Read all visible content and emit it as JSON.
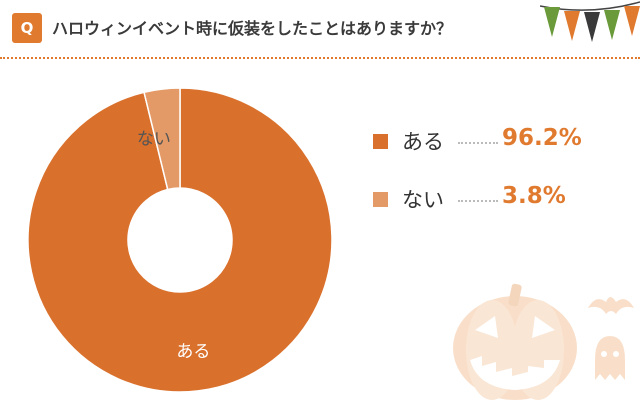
{
  "header": {
    "badge": "Q",
    "question": "ハロウィンイベント時に仮装をしたことはありますか？"
  },
  "colors": {
    "accent": "#e07a2f",
    "slice_main": "#d9702c",
    "slice_minor": "#e49a66",
    "divider": "#e07a2f"
  },
  "legend": [
    {
      "label": "ある",
      "value": "96.2%",
      "color": "#d9702c"
    },
    {
      "label": "ない",
      "value": "3.8%",
      "color": "#e49a66"
    }
  ],
  "chart_data": {
    "type": "pie",
    "donut": true,
    "title": "ハロウィンイベント時に仮装をしたことはありますか？",
    "categories": [
      "ある",
      "ない"
    ],
    "values": [
      96.2,
      3.8
    ],
    "slice_labels": [
      "ある",
      "ない"
    ],
    "legend_position": "right"
  },
  "decoration": {
    "bunting_colors": [
      "#6a9a3a",
      "#e07a2f",
      "#3a3a3a",
      "#6a9a3a",
      "#e07a2f"
    ],
    "pumpkin_icon": "jack-o-lantern-icon",
    "bat_icon": "bat-icon",
    "ghost_icon": "ghost-icon"
  }
}
